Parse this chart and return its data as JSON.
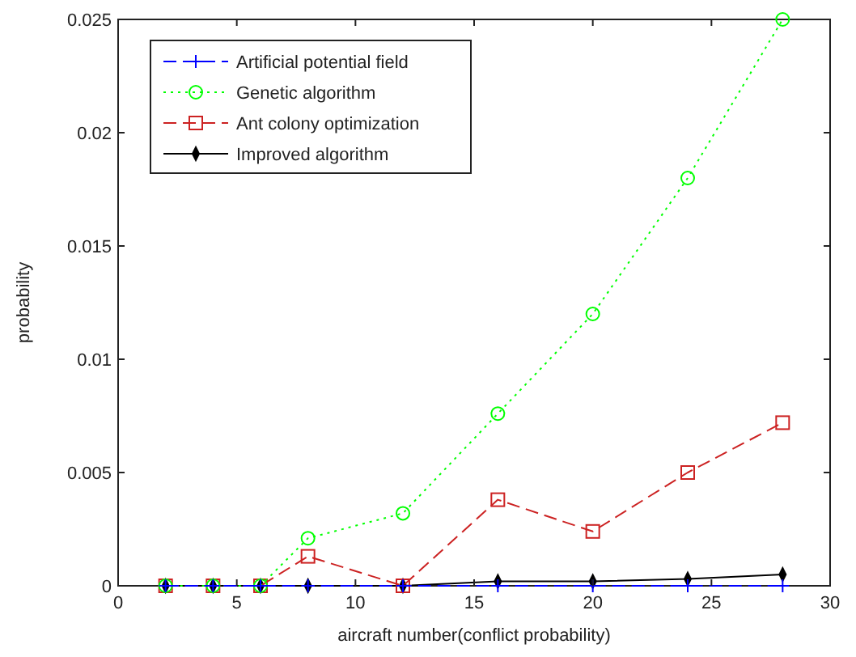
{
  "chart_data": {
    "type": "line",
    "xlabel": "aircraft number(conflict probability)",
    "ylabel": "probability",
    "x": [
      2,
      4,
      6,
      8,
      12,
      16,
      20,
      24,
      28
    ],
    "xlim": [
      0,
      30
    ],
    "xticks": [
      0,
      5,
      10,
      15,
      20,
      25,
      30
    ],
    "ylim": [
      0,
      0.025
    ],
    "yticks": [
      0,
      0.005,
      0.01,
      0.015,
      0.02,
      0.025
    ],
    "grid": false,
    "legend": "top left",
    "series": [
      {
        "name": "Artificial potential field",
        "color": "#0000ff",
        "values": [
          0,
          0,
          0,
          0,
          0,
          0,
          0,
          0,
          0
        ],
        "marker": "cross",
        "line_style": "dashed"
      },
      {
        "name": "Genetic algorithm",
        "color": "#00ff00",
        "values": [
          0,
          0,
          0,
          0.0021,
          0.0032,
          0.0076,
          0.012,
          0.018,
          0.025
        ],
        "marker": "circle",
        "line_style": "dotted"
      },
      {
        "name": "Ant colony optimization",
        "color": "#cc2222",
        "values": [
          0,
          0,
          0,
          0.0013,
          0,
          0.0038,
          0.0024,
          0.005,
          0.0072
        ],
        "marker": "square",
        "line_style": "dashed"
      },
      {
        "name": "Improved algorithm",
        "color": "#000000",
        "values": [
          0,
          0,
          0,
          0,
          0,
          0.0002,
          0.0002,
          0.0003,
          0.0005
        ],
        "marker": "diamond",
        "line_style": "solid"
      }
    ]
  }
}
